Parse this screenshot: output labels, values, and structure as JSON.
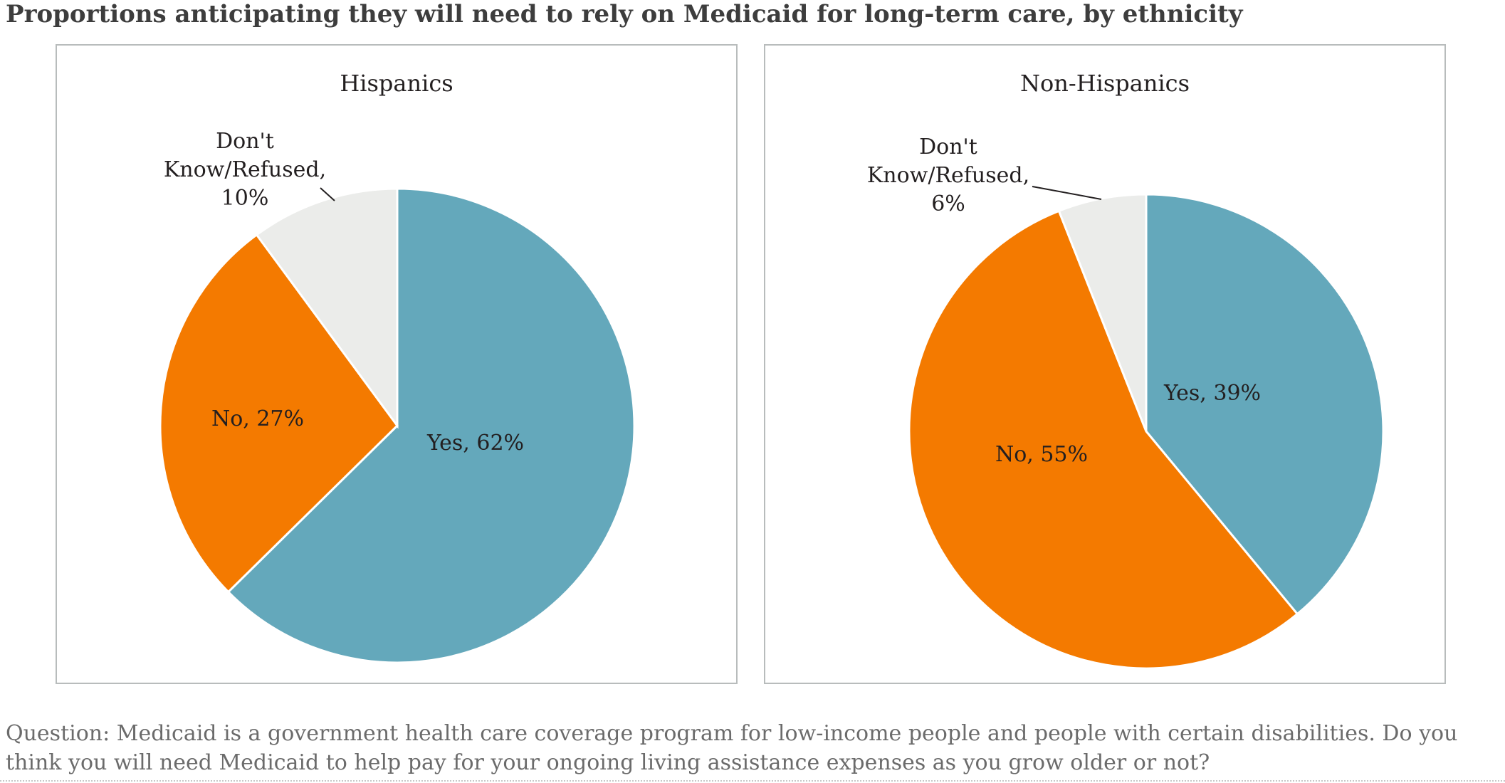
{
  "title": "Proportions anticipating they will need to rely on Medicaid for long-term care, by ethnicity",
  "footnote": {
    "line1": "Question: Medicaid is a government health care coverage program for low-income people and people with certain disabilities. Do you",
    "line2": "think you will need Medicaid to help pay for your ongoing living assistance expenses as you grow older or not?"
  },
  "colors": {
    "yes": "#64a8bb",
    "no": "#f47a00",
    "dont_know": "#ebecea",
    "border": "#b8bcbc"
  },
  "chart_data": [
    {
      "type": "pie",
      "title": "Hispanics",
      "slices": [
        {
          "label": "Yes",
          "value": 62,
          "text": "Yes, 62%",
          "color": "#64a8bb"
        },
        {
          "label": "No",
          "value": 27,
          "text": "No, 27%",
          "color": "#f47a00"
        },
        {
          "label": "Don't Know/Refused",
          "value": 10,
          "text": [
            "Don't",
            "Know/Refused,",
            "10%"
          ],
          "color": "#ebecea"
        }
      ]
    },
    {
      "type": "pie",
      "title": "Non-Hispanics",
      "slices": [
        {
          "label": "Yes",
          "value": 39,
          "text": "Yes, 39%",
          "color": "#64a8bb"
        },
        {
          "label": "No",
          "value": 55,
          "text": "No, 55%",
          "color": "#f47a00"
        },
        {
          "label": "Don't Know/Refused",
          "value": 6,
          "text": [
            "Don't",
            "Know/Refused,",
            "6%"
          ],
          "color": "#ebecea"
        }
      ]
    }
  ]
}
